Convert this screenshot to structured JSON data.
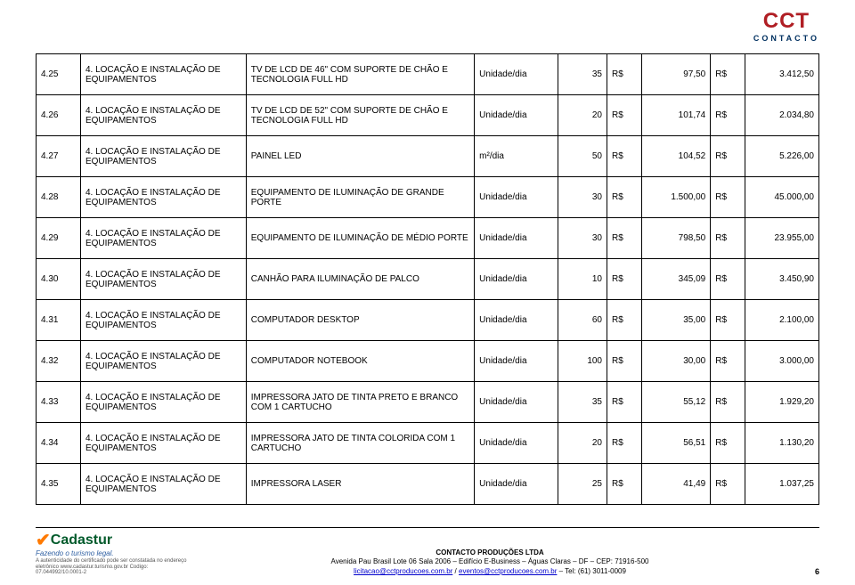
{
  "logo": {
    "main": "CCT",
    "sub": "CONTACTO"
  },
  "rows": [
    {
      "num": "4.25",
      "cat": "4. LOCAÇÃO E INSTALAÇÃO DE EQUIPAMENTOS",
      "desc": "TV DE LCD DE 46\" COM SUPORTE DE CHÃO E TECNOLOGIA FULL HD",
      "unit": "Unidade/dia",
      "qty": "35",
      "cur1": "R$",
      "p1": "97,50",
      "cur2": "R$",
      "p2": "3.412,50"
    },
    {
      "num": "4.26",
      "cat": "4. LOCAÇÃO E INSTALAÇÃO DE EQUIPAMENTOS",
      "desc": "TV DE LCD DE 52\" COM SUPORTE DE CHÃO E TECNOLOGIA FULL HD",
      "unit": "Unidade/dia",
      "qty": "20",
      "cur1": "R$",
      "p1": "101,74",
      "cur2": "R$",
      "p2": "2.034,80"
    },
    {
      "num": "4.27",
      "cat": "4. LOCAÇÃO E INSTALAÇÃO DE EQUIPAMENTOS",
      "desc": "PAINEL LED",
      "unit": "m²/dia",
      "qty": "50",
      "cur1": "R$",
      "p1": "104,52",
      "cur2": "R$",
      "p2": "5.226,00"
    },
    {
      "num": "4.28",
      "cat": "4. LOCAÇÃO E INSTALAÇÃO DE EQUIPAMENTOS",
      "desc": "EQUIPAMENTO DE ILUMINAÇÃO DE GRANDE PORTE",
      "unit": "Unidade/dia",
      "qty": "30",
      "cur1": "R$",
      "p1": "1.500,00",
      "cur2": "R$",
      "p2": "45.000,00"
    },
    {
      "num": "4.29",
      "cat": "4. LOCAÇÃO E INSTALAÇÃO DE EQUIPAMENTOS",
      "desc": "EQUIPAMENTO DE ILUMINAÇÃO DE MÉDIO PORTE",
      "unit": "Unidade/dia",
      "qty": "30",
      "cur1": "R$",
      "p1": "798,50",
      "cur2": "R$",
      "p2": "23.955,00"
    },
    {
      "num": "4.30",
      "cat": "4. LOCAÇÃO E INSTALAÇÃO DE EQUIPAMENTOS",
      "desc": "CANHÃO PARA ILUMINAÇÃO DE PALCO",
      "unit": "Unidade/dia",
      "qty": "10",
      "cur1": "R$",
      "p1": "345,09",
      "cur2": "R$",
      "p2": "3.450,90"
    },
    {
      "num": "4.31",
      "cat": "4. LOCAÇÃO E INSTALAÇÃO DE EQUIPAMENTOS",
      "desc": "COMPUTADOR DESKTOP",
      "unit": "Unidade/dia",
      "qty": "60",
      "cur1": "R$",
      "p1": "35,00",
      "cur2": "R$",
      "p2": "2.100,00"
    },
    {
      "num": "4.32",
      "cat": "4. LOCAÇÃO E INSTALAÇÃO DE EQUIPAMENTOS",
      "desc": "COMPUTADOR NOTEBOOK",
      "unit": "Unidade/dia",
      "qty": "100",
      "cur1": "R$",
      "p1": "30,00",
      "cur2": "R$",
      "p2": "3.000,00"
    },
    {
      "num": "4.33",
      "cat": "4. LOCAÇÃO E INSTALAÇÃO DE EQUIPAMENTOS",
      "desc": "IMPRESSORA JATO DE TINTA PRETO E BRANCO COM 1 CARTUCHO",
      "unit": "Unidade/dia",
      "qty": "35",
      "cur1": "R$",
      "p1": "55,12",
      "cur2": "R$",
      "p2": "1.929,20"
    },
    {
      "num": "4.34",
      "cat": "4. LOCAÇÃO E INSTALAÇÃO DE EQUIPAMENTOS",
      "desc": "IMPRESSORA JATO DE TINTA COLORIDA COM 1 CARTUCHO",
      "unit": "Unidade/dia",
      "qty": "20",
      "cur1": "R$",
      "p1": "56,51",
      "cur2": "R$",
      "p2": "1.130,20"
    },
    {
      "num": "4.35",
      "cat": "4. LOCAÇÃO E INSTALAÇÃO DE EQUIPAMENTOS",
      "desc": "IMPRESSORA LASER",
      "unit": "Unidade/dia",
      "qty": "25",
      "cur1": "R$",
      "p1": "41,49",
      "cur2": "R$",
      "p2": "1.037,25"
    }
  ],
  "footer": {
    "cadastur_brand": "Cadastur",
    "cadastur_tag": "Fazendo o turismo legal.",
    "cadastur_line1": "A autenticidade do certificado pode ser constatada no endereço",
    "cadastur_line2": "eletrônico www.cadastur.turismo.gov.br Codigo: 07.044992/10.0001-2",
    "company": "CONTACTO PRODUÇÕES LTDA",
    "addr": "Avenida Pau Brasil Lote 06 Sala 2006 – Edifício E-Business – Águas Claras – DF – CEP: 71916-500",
    "email1": "licitacao@cctproducoes.com.br",
    "sep": " / ",
    "email2": "eventos@cctproducoes.com.br",
    "phone": " – Tel: (61) 3011-0009",
    "page": "6"
  }
}
